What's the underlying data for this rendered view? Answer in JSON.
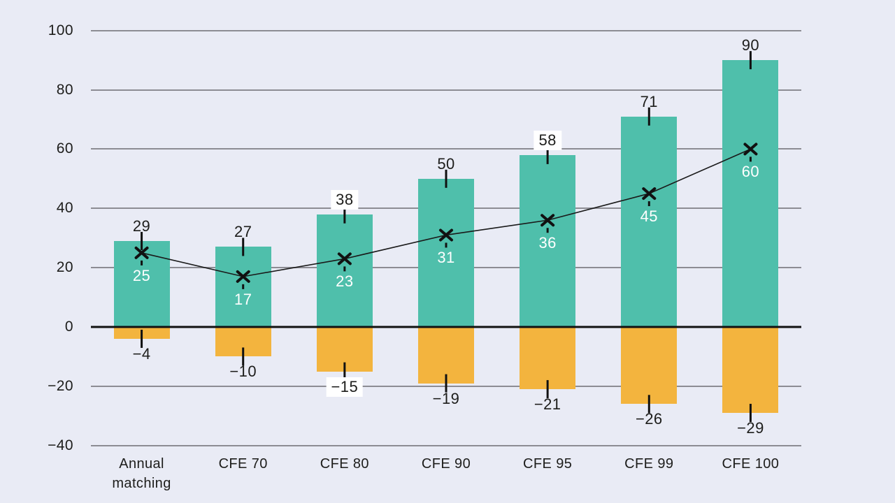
{
  "page": {
    "background_color": "#E9EBF5",
    "title": ""
  },
  "chart_data": {
    "type": "bar",
    "title": "",
    "xlabel": "",
    "ylabel": "",
    "categories": [
      "Annual matching",
      "CFE 70",
      "CFE 80",
      "CFE 90",
      "CFE 95",
      "CFE 99",
      "CFE 100"
    ],
    "series": [
      {
        "name": "positive-component",
        "chart_role": "positive-bars",
        "color": "#4FBFAB",
        "values": [
          29,
          27,
          38,
          50,
          58,
          71,
          90
        ],
        "labels": [
          "29",
          "27",
          "38",
          "50",
          "58",
          "71",
          "90"
        ],
        "label_color": "#1d1d1b"
      },
      {
        "name": "negative-component",
        "chart_role": "negative-bars",
        "color": "#F3B43E",
        "values": [
          -4,
          -10,
          -15,
          -19,
          -21,
          -26,
          -29
        ],
        "labels": [
          "−4",
          "−10",
          "−15",
          "−19",
          "−21",
          "−26",
          "−29"
        ],
        "label_color": "#1d1d1b"
      },
      {
        "name": "net-line",
        "chart_role": "line",
        "marker": "x",
        "color": "#1a1a1a",
        "values": [
          25,
          17,
          23,
          31,
          36,
          45,
          60
        ],
        "labels": [
          "25",
          "17",
          "23",
          "31",
          "36",
          "45",
          "60"
        ],
        "label_color": "#ffffff"
      }
    ],
    "yticks": [
      100,
      80,
      60,
      40,
      20,
      0,
      -20,
      -40
    ],
    "ytick_labels": [
      "100",
      "80",
      "60",
      "40",
      "20",
      "0",
      "−20",
      "−40"
    ],
    "ylim": [
      -40,
      100
    ],
    "grid": "horizontal",
    "legend": "none",
    "axis_style": {
      "gridline_color": "#8C8C93",
      "zero_line_color": "#111111",
      "tick_label_color": "#1d1d1b"
    }
  }
}
